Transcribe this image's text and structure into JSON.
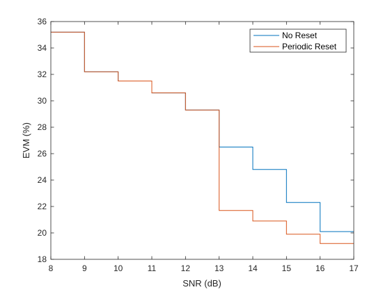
{
  "chart_data": {
    "type": "line",
    "step": true,
    "title": "",
    "xlabel": "SNR (dB)",
    "ylabel": "EVM (%)",
    "xlim": [
      8,
      17
    ],
    "ylim": [
      18,
      36
    ],
    "x_ticks": [
      8,
      9,
      10,
      11,
      12,
      13,
      14,
      15,
      16,
      17
    ],
    "y_ticks": [
      18,
      20,
      22,
      24,
      26,
      28,
      30,
      32,
      34,
      36
    ],
    "x": [
      8,
      9,
      10,
      11,
      12,
      13,
      14,
      15,
      16,
      17
    ],
    "grid": false,
    "legend_position": "top-right",
    "series": [
      {
        "name": "No Reset",
        "color": "#0072BD",
        "values": [
          35.2,
          32.2,
          31.5,
          30.6,
          29.3,
          26.5,
          24.8,
          22.3,
          20.1,
          20.1
        ]
      },
      {
        "name": "Periodic Reset",
        "color": "#D95319",
        "values": [
          35.2,
          32.2,
          31.5,
          30.6,
          29.3,
          21.7,
          20.9,
          19.9,
          19.2,
          19.2
        ]
      }
    ]
  }
}
